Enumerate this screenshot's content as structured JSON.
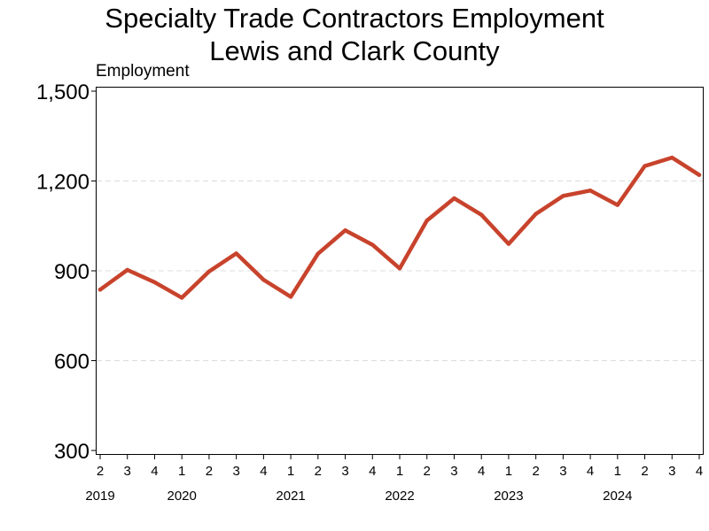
{
  "title_line1": "Specialty Trade Contractors Employment",
  "title_line2": "Lewis and Clark County",
  "chart_data": {
    "type": "line",
    "title": "Specialty Trade Contractors Employment",
    "subtitle": "Lewis and Clark County",
    "ylabel": "Employment",
    "xlabel": "",
    "ylim": [
      300,
      1500
    ],
    "yticks": [
      300,
      600,
      900,
      1200,
      1500
    ],
    "ytick_labels": [
      "300",
      "600",
      "900",
      "1,200",
      "1,500"
    ],
    "grid": "horizontal dashed",
    "x": [
      "2019 Q2",
      "2019 Q3",
      "2019 Q4",
      "2020 Q1",
      "2020 Q2",
      "2020 Q3",
      "2020 Q4",
      "2021 Q1",
      "2021 Q2",
      "2021 Q3",
      "2021 Q4",
      "2022 Q1",
      "2022 Q2",
      "2022 Q3",
      "2022 Q4",
      "2023 Q1",
      "2023 Q2",
      "2023 Q3",
      "2023 Q4",
      "2024 Q1",
      "2024 Q2",
      "2024 Q3",
      "2024 Q4"
    ],
    "quarter_labels": [
      "2",
      "3",
      "4",
      "1",
      "2",
      "3",
      "4",
      "1",
      "2",
      "3",
      "4",
      "1",
      "2",
      "3",
      "4",
      "1",
      "2",
      "3",
      "4",
      "1",
      "2",
      "3",
      "4"
    ],
    "year_labels": [
      "2019",
      "2020",
      "2021",
      "2022",
      "2023",
      "2024"
    ],
    "series": [
      {
        "color": "#c8432c",
        "values": [
          837,
          903,
          862,
          810,
          898,
          958,
          870,
          813,
          957,
          1035,
          987,
          908,
          1068,
          1142,
          1087,
          990,
          1090,
          1150,
          1168,
          1120,
          1250,
          1278,
          1220
        ]
      }
    ]
  }
}
